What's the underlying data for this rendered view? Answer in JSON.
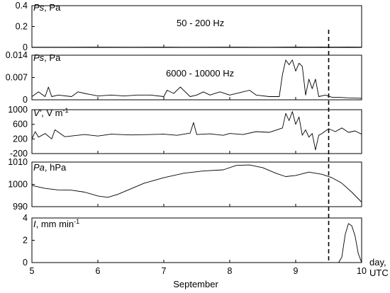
{
  "chart_data": [
    {
      "type": "line",
      "panel_label": {
        "symbol": "Ps",
        "unit": ", Pa"
      },
      "band_label": "50 - 200 Hz",
      "ylim": [
        0,
        0.4
      ],
      "yticks": [
        "0.4",
        "0.2",
        "0"
      ],
      "ytick_values": [
        0.4,
        0.2,
        0
      ],
      "series": [
        {
          "x": [
            5.0,
            5.5,
            6.0,
            6.5,
            7.0,
            7.5,
            8.0,
            8.5,
            8.8,
            9.0,
            9.2,
            9.4,
            9.6,
            9.8,
            10.0
          ],
          "y": [
            0.002,
            0.002,
            0.003,
            0.002,
            0.003,
            0.002,
            0.003,
            0.002,
            0.003,
            0.004,
            0.003,
            0.004,
            0.003,
            0.004,
            0.003
          ]
        }
      ]
    },
    {
      "type": "line",
      "panel_label": {
        "symbol": "Ps",
        "unit": ", Pa"
      },
      "band_label": "6000 - 10000 Hz",
      "ylim": [
        0,
        0.014
      ],
      "yticks": [
        "0.014",
        "0.007",
        "0"
      ],
      "ytick_values": [
        0.014,
        0.007,
        0
      ],
      "series": [
        {
          "x": [
            5.0,
            5.1,
            5.2,
            5.25,
            5.3,
            5.4,
            5.6,
            5.7,
            5.8,
            6.0,
            6.2,
            6.4,
            6.6,
            6.8,
            7.0,
            7.05,
            7.15,
            7.25,
            7.4,
            7.5,
            7.6,
            7.7,
            7.85,
            8.0,
            8.2,
            8.3,
            8.4,
            8.6,
            8.75,
            8.8,
            8.85,
            8.9,
            8.95,
            9.0,
            9.05,
            9.1,
            9.15,
            9.2,
            9.25,
            9.3,
            9.35,
            9.45,
            9.55,
            9.65,
            9.8,
            10.0
          ],
          "y": [
            0.001,
            0.0025,
            0.001,
            0.004,
            0.001,
            0.0015,
            0.001,
            0.0025,
            0.002,
            0.0012,
            0.0015,
            0.0012,
            0.0015,
            0.0015,
            0.001,
            0.003,
            0.002,
            0.004,
            0.001,
            0.0015,
            0.0025,
            0.0015,
            0.0025,
            0.0015,
            0.0025,
            0.003,
            0.0015,
            0.001,
            0.001,
            0.008,
            0.0125,
            0.011,
            0.0125,
            0.009,
            0.0115,
            0.0105,
            0.0015,
            0.0065,
            0.0035,
            0.0065,
            0.001,
            0.0015,
            0.0008,
            0.0008,
            0.0006,
            0.0005
          ]
        }
      ]
    },
    {
      "type": "line",
      "panel_label": {
        "symbol": "V'",
        "unit": ", V m",
        "unit_sup": "-1"
      },
      "ylim": [
        -200,
        1000
      ],
      "yticks": [
        "1000",
        "600",
        "200",
        "-200"
      ],
      "ytick_values": [
        1000,
        600,
        200,
        -200
      ],
      "series": [
        {
          "x": [
            5.0,
            5.05,
            5.1,
            5.2,
            5.3,
            5.35,
            5.5,
            5.8,
            6.0,
            6.2,
            6.5,
            6.8,
            7.0,
            7.2,
            7.4,
            7.45,
            7.5,
            7.7,
            7.9,
            8.0,
            8.2,
            8.4,
            8.6,
            8.8,
            8.85,
            8.9,
            8.95,
            9.0,
            9.05,
            9.1,
            9.15,
            9.2,
            9.25,
            9.3,
            9.35,
            9.4,
            9.5,
            9.6,
            9.7,
            9.8,
            9.9,
            10.0
          ],
          "y": [
            200,
            400,
            250,
            350,
            200,
            450,
            260,
            320,
            280,
            330,
            310,
            320,
            330,
            300,
            360,
            650,
            320,
            340,
            300,
            350,
            320,
            400,
            380,
            500,
            900,
            700,
            950,
            600,
            800,
            300,
            450,
            250,
            350,
            -100,
            300,
            350,
            480,
            400,
            500,
            380,
            420,
            330
          ]
        }
      ]
    },
    {
      "type": "line",
      "panel_label": {
        "symbol": "Pa",
        "unit": ", hPa"
      },
      "ylim": [
        990,
        1010
      ],
      "yticks": [
        "1010",
        "1000",
        "990"
      ],
      "ytick_values": [
        1010,
        1000,
        990
      ],
      "series": [
        {
          "x": [
            5.0,
            5.2,
            5.4,
            5.6,
            5.8,
            6.0,
            6.15,
            6.3,
            6.5,
            6.7,
            7.0,
            7.3,
            7.6,
            7.9,
            8.1,
            8.3,
            8.5,
            8.7,
            8.85,
            9.0,
            9.2,
            9.4,
            9.55,
            9.7,
            9.85,
            10.0
          ],
          "y": [
            999.5,
            998.2,
            997.5,
            997.4,
            996.5,
            994.8,
            994.2,
            995.5,
            998.0,
            1000.5,
            1003.0,
            1005.0,
            1006.0,
            1006.5,
            1008.5,
            1008.7,
            1007.5,
            1005.0,
            1003.5,
            1004.0,
            1005.5,
            1004.5,
            1003.0,
            1000.5,
            996.5,
            992.0
          ]
        }
      ]
    },
    {
      "type": "line",
      "panel_label": {
        "symbol": "I",
        "unit": ", mm min",
        "unit_sup": "-1"
      },
      "ylim": [
        0,
        4
      ],
      "yticks": [
        "4",
        "2",
        "0"
      ],
      "ytick_values": [
        4,
        2,
        0
      ],
      "xlim": [
        5,
        10
      ],
      "xticks": [
        "5",
        "6",
        "7",
        "8",
        "9",
        "10"
      ],
      "xtick_values": [
        5,
        6,
        7,
        8,
        9,
        10
      ],
      "xlabel": "September",
      "xlabel_right": [
        "day,",
        "UTC"
      ],
      "series": [
        {
          "x": [
            5.0,
            9.65,
            9.7,
            9.75,
            9.8,
            9.85,
            9.9,
            9.95,
            10.0
          ],
          "y": [
            0,
            0,
            0.5,
            2.5,
            3.5,
            3.3,
            2.4,
            0.8,
            0
          ]
        }
      ]
    }
  ],
  "vline": {
    "x": 9.5
  }
}
